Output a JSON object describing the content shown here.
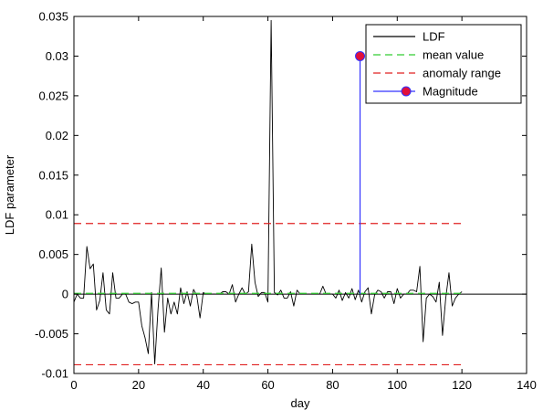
{
  "chart_data": {
    "type": "line",
    "xlabel": "day",
    "ylabel": "LDF parameter",
    "xlim": [
      0,
      140
    ],
    "ylim": [
      -0.01,
      0.035
    ],
    "xticks": [
      0,
      20,
      40,
      60,
      80,
      100,
      120,
      140
    ],
    "xtick_labels": [
      "0",
      "20",
      "40",
      "60",
      "80",
      "100",
      "120",
      "140"
    ],
    "yticks": [
      -0.01,
      -0.005,
      0,
      0.005,
      0.01,
      0.015,
      0.02,
      0.025,
      0.03,
      0.035
    ],
    "ytick_labels": [
      "-0.01",
      "-0.005",
      "0",
      "0.005",
      "0.01",
      "0.015",
      "0.02",
      "0.025",
      "0.03",
      "0.035"
    ],
    "grid": false,
    "legend_position": "top-right",
    "zero_line": true,
    "series": [
      {
        "name": "LDF",
        "kind": "line",
        "color": "#000000",
        "x": [
          0,
          1,
          2,
          3,
          4,
          5,
          6,
          7,
          8,
          9,
          10,
          11,
          12,
          13,
          14,
          15,
          16,
          17,
          18,
          19,
          20,
          21,
          22,
          23,
          24,
          25,
          26,
          27,
          28,
          29,
          30,
          31,
          32,
          33,
          34,
          35,
          36,
          37,
          38,
          39,
          40,
          41,
          42,
          43,
          44,
          45,
          46,
          47,
          48,
          49,
          50,
          51,
          52,
          53,
          54,
          55,
          56,
          57,
          58,
          59,
          60,
          61,
          62,
          63,
          64,
          65,
          66,
          67,
          68,
          69,
          70,
          71,
          72,
          73,
          74,
          75,
          76,
          77,
          78,
          79,
          80,
          81,
          82,
          83,
          84,
          85,
          86,
          87,
          88,
          89,
          90,
          91,
          92,
          93,
          94,
          95,
          96,
          97,
          98,
          99,
          100,
          101,
          102,
          103,
          104,
          105,
          106,
          107,
          108,
          109,
          110,
          111,
          112,
          113,
          114,
          115,
          116,
          117,
          118,
          119,
          120
        ],
        "y": [
          -0.001,
          0,
          -0.0005,
          -0.0005,
          0.006,
          0.0032,
          0.0038,
          -0.002,
          -0.0008,
          0.0027,
          -0.002,
          -0.0025,
          0.0027,
          -0.0005,
          -0.0005,
          0,
          0,
          -0.001,
          -0.0012,
          -0.001,
          -0.001,
          -0.004,
          -0.0055,
          -0.0075,
          0.0002,
          -0.0088,
          -0.002,
          0.0033,
          -0.0048,
          -0.0005,
          -0.0025,
          -0.001,
          -0.0025,
          0.0008,
          -0.0012,
          0.0003,
          -0.0015,
          0.0006,
          -0.0002,
          -0.003,
          0.0002,
          0,
          0,
          0,
          0,
          0,
          0.0003,
          0.0003,
          0,
          0.0012,
          -0.001,
          0,
          0.0008,
          0,
          0.0003,
          0.0063,
          0.0015,
          -0.0003,
          0.0002,
          0.0002,
          -0.001,
          0.0345,
          0.0002,
          -0.0001,
          0.0005,
          -0.0005,
          -0.0005,
          0.0003,
          -0.0015,
          0.0005,
          0,
          0,
          0,
          0,
          0,
          0,
          0,
          0.001,
          0,
          0,
          0,
          -0.0005,
          0.0005,
          -0.0008,
          0.0002,
          -0.0005,
          0.0007,
          -0.0007,
          0.0005,
          -0.001,
          0.0003,
          0.0008,
          -0.0025,
          -0.0001,
          0.0005,
          0.0003,
          -0.0005,
          0.0003,
          0.0003,
          -0.0012,
          0.0007,
          -0.0005,
          0,
          0,
          0.0005,
          0.0005,
          0.0003,
          0.0035,
          -0.006,
          -0.0005,
          0,
          -0.0003,
          -0.001,
          0.0015,
          -0.0052,
          -0.0005,
          0.0027,
          -0.0015,
          -0.0005,
          0,
          0.0003
        ]
      },
      {
        "name": "mean value",
        "kind": "hline",
        "color": "#33cc33",
        "dash": "dashed",
        "y": 0.0001,
        "x_range": [
          0,
          121
        ]
      },
      {
        "name": "anomaly range",
        "kind": "hline_pair",
        "color": "#e02020",
        "dash": "dashed",
        "y": [
          0.0089,
          -0.0089
        ],
        "x_range": [
          0,
          121
        ]
      },
      {
        "name": "Magnitude",
        "kind": "stem",
        "color": "#3333ff",
        "marker_color": "#e0103a",
        "x": [
          88.5
        ],
        "y": [
          0.03
        ]
      }
    ]
  }
}
